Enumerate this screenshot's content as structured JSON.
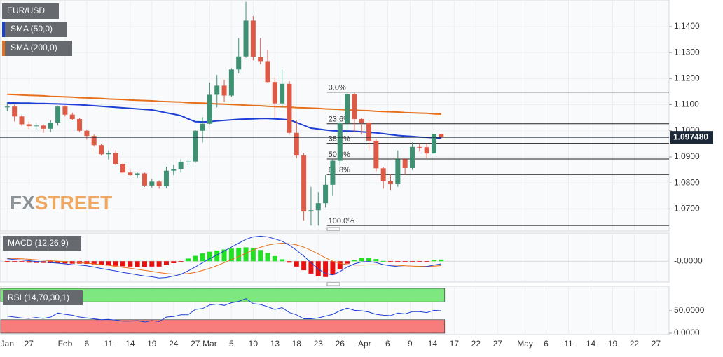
{
  "chart_data": {
    "type": "candlestick",
    "title": "EUR/USD",
    "up_color": "#3f9173",
    "down_color": "#dd5a47",
    "grid": true,
    "xlim": [
      -1,
      91.5
    ],
    "xticks": [
      {
        "value": 0,
        "label": "Jan"
      },
      {
        "value": 3,
        "label": "27"
      },
      {
        "value": 8,
        "label": "Feb"
      },
      {
        "value": 11,
        "label": "6"
      },
      {
        "value": 14,
        "label": "11"
      },
      {
        "value": 17,
        "label": "14"
      },
      {
        "value": 20,
        "label": "19"
      },
      {
        "value": 23,
        "label": "24"
      },
      {
        "value": 26,
        "label": "27"
      },
      {
        "value": 28,
        "label": "Mar"
      },
      {
        "value": 31,
        "label": "5"
      },
      {
        "value": 34,
        "label": "10"
      },
      {
        "value": 37,
        "label": "13"
      },
      {
        "value": 40,
        "label": "18"
      },
      {
        "value": 43,
        "label": "23"
      },
      {
        "value": 46,
        "label": "26"
      },
      {
        "value": 49.4,
        "label": "Apr"
      },
      {
        "value": 52.6,
        "label": "6"
      },
      {
        "value": 55.7,
        "label": "9"
      },
      {
        "value": 58.8,
        "label": "14"
      },
      {
        "value": 61.8,
        "label": "17"
      },
      {
        "value": 64.8,
        "label": "22"
      },
      {
        "value": 67.8,
        "label": "27"
      },
      {
        "value": 71.6,
        "label": "May"
      },
      {
        "value": 74.5,
        "label": "6"
      },
      {
        "value": 77.6,
        "label": "11"
      },
      {
        "value": 80.7,
        "label": "14"
      },
      {
        "value": 83.7,
        "label": "19"
      },
      {
        "value": 86.7,
        "label": "22"
      },
      {
        "value": 89.7,
        "label": "27"
      }
    ],
    "ylim": [
      1.0615,
      1.1502
    ],
    "yticks": [
      {
        "value": 1.07,
        "label": "1.0700"
      },
      {
        "value": 1.08,
        "label": "1.0800"
      },
      {
        "value": 1.09,
        "label": "1.0900"
      },
      {
        "value": 1.1,
        "label": "1.1000"
      },
      {
        "value": 1.11,
        "label": "1.1100"
      },
      {
        "value": 1.12,
        "label": "1.1200"
      },
      {
        "value": 1.13,
        "label": "1.1300"
      },
      {
        "value": 1.14,
        "label": "1.1400"
      }
    ],
    "open": [
      1.109,
      1.1093,
      1.1055,
      1.1025,
      1.1018,
      1.102,
      1.1008,
      1.1031,
      1.1093,
      1.1062,
      1.1045,
      1.1,
      1.098,
      1.0945,
      1.091,
      1.0915,
      1.0873,
      1.084,
      1.083,
      1.0837,
      1.079,
      1.0805,
      1.0788,
      1.0847,
      1.0853,
      1.088,
      1.0882,
      1.1,
      1.1027,
      1.1138,
      1.1173,
      1.1135,
      1.1235,
      1.1285,
      1.1423,
      1.1284,
      1.1267,
      1.1187,
      1.1105,
      1.118,
      1.0992,
      1.0905,
      1.069,
      1.0695,
      1.0722,
      1.0793,
      1.0885,
      1.1028,
      1.114,
      1.1045,
      1.1031,
      1.0962,
      1.0856,
      1.0807,
      1.0795,
      1.0891,
      1.0857,
      1.0938,
      1.0937,
      1.0913,
      1.0986
    ],
    "high": [
      1.111,
      1.11,
      1.106,
      1.1035,
      1.103,
      1.1025,
      1.104,
      1.1096,
      1.1097,
      1.107,
      1.105,
      1.1005,
      1.0985,
      1.095,
      1.0925,
      1.0925,
      1.088,
      1.085,
      1.084,
      1.084,
      1.0815,
      1.081,
      1.0862,
      1.087,
      1.0891,
      1.089,
      1.1003,
      1.1053,
      1.1185,
      1.1214,
      1.1195,
      1.124,
      1.1355,
      1.1495,
      1.144,
      1.1355,
      1.131,
      1.1205,
      1.1235,
      1.119,
      1.104,
      1.0915,
      1.0785,
      1.0765,
      1.083,
      1.089,
      1.1035,
      1.1148,
      1.1145,
      1.105,
      1.104,
      1.097,
      1.086,
      1.0835,
      1.0925,
      1.0895,
      1.0955,
      1.0953,
      1.095,
      1.099,
      1.099
    ],
    "low": [
      1.1075,
      1.1036,
      1.1019,
      1.1007,
      1.1005,
      1.0992,
      1.0995,
      1.102,
      1.1055,
      1.104,
      1.0995,
      1.0966,
      1.094,
      1.0905,
      1.089,
      1.0868,
      1.0835,
      1.0827,
      1.082,
      1.0785,
      1.0782,
      1.0778,
      1.078,
      1.083,
      1.084,
      1.086,
      1.0875,
      1.0955,
      1.1025,
      1.109,
      1.111,
      1.113,
      1.122,
      1.128,
      1.127,
      1.1255,
      1.1185,
      1.105,
      1.109,
      1.0985,
      1.0895,
      1.0655,
      1.0636,
      1.0636,
      1.0705,
      1.075,
      1.087,
      1.099,
      1.0995,
      1.0985,
      1.0925,
      1.0845,
      1.0778,
      1.077,
      1.0785,
      1.083,
      1.085,
      1.092,
      1.0895,
      1.0905,
      1.097
    ],
    "close": [
      1.1093,
      1.1055,
      1.1025,
      1.1018,
      1.102,
      1.1008,
      1.1031,
      1.1093,
      1.1062,
      1.1045,
      1.1,
      1.098,
      1.0945,
      1.091,
      1.0915,
      1.0873,
      1.084,
      1.083,
      1.0837,
      1.079,
      1.0805,
      1.0788,
      1.0847,
      1.0853,
      1.088,
      1.0882,
      1.1,
      1.1027,
      1.1138,
      1.1173,
      1.1135,
      1.1235,
      1.1285,
      1.1423,
      1.1284,
      1.1267,
      1.1187,
      1.1105,
      1.118,
      1.0992,
      1.0905,
      1.069,
      1.0695,
      1.0722,
      1.0793,
      1.0885,
      1.1028,
      1.114,
      1.1045,
      1.1031,
      1.0962,
      1.0856,
      1.0807,
      1.0795,
      1.0891,
      1.0857,
      1.0938,
      1.0937,
      1.0913,
      1.0986,
      1.0974
    ],
    "overlays": [
      {
        "name": "SMA (50,0)",
        "color": "#1c3fd6",
        "values": [
          1.1107,
          1.1107,
          1.1106,
          1.1106,
          1.1105,
          1.1105,
          1.1104,
          1.1103,
          1.1102,
          1.1101,
          1.11,
          1.1098,
          1.1096,
          1.1094,
          1.1092,
          1.109,
          1.1088,
          1.1086,
          1.1084,
          1.1082,
          1.108,
          1.1075,
          1.1069,
          1.1064,
          1.1058,
          1.1046,
          1.1035,
          1.1034,
          1.1035,
          1.1038,
          1.104,
          1.1042,
          1.1044,
          1.1045,
          1.1046,
          1.1047,
          1.1047,
          1.1046,
          1.1044,
          1.1042,
          1.1032,
          1.1021,
          1.101,
          1.1007,
          1.1003,
          1.1,
          1.0999,
          1.0999,
          1.0998,
          1.0996,
          1.0994,
          1.0992,
          1.0989,
          1.0985,
          1.0982,
          1.098,
          1.0978,
          1.0976,
          1.0975,
          1.0973,
          1.0972
        ]
      },
      {
        "name": "SMA (200,0)",
        "color": "#e8701a",
        "values": [
          1.114,
          1.1139,
          1.1137,
          1.1136,
          1.1135,
          1.1134,
          1.1132,
          1.1131,
          1.113,
          1.1129,
          1.1127,
          1.1126,
          1.1125,
          1.1124,
          1.1122,
          1.1121,
          1.112,
          1.1118,
          1.1117,
          1.1116,
          1.1115,
          1.1113,
          1.1112,
          1.1111,
          1.111,
          1.1108,
          1.1107,
          1.1106,
          1.1105,
          1.1103,
          1.1102,
          1.1101,
          1.11,
          1.1098,
          1.1097,
          1.1096,
          1.1094,
          1.1093,
          1.1092,
          1.1091,
          1.1089,
          1.1088,
          1.1087,
          1.1086,
          1.1084,
          1.1083,
          1.1082,
          1.108,
          1.1079,
          1.1078,
          1.1077,
          1.1075,
          1.1074,
          1.1073,
          1.1072,
          1.107,
          1.1069,
          1.1068,
          1.1067,
          1.1065,
          1.1064
        ]
      }
    ],
    "fibonacci": {
      "start": 44.2,
      "levels": [
        {
          "label": "0.0%",
          "price": 1.1148
        },
        {
          "label": "23.6%",
          "price": 1.1027
        },
        {
          "label": "38.2%",
          "price": 1.0952
        },
        {
          "label": "50.0%",
          "price": 1.0892
        },
        {
          "label": "61.8%",
          "price": 1.0832
        },
        {
          "label": "100.0%",
          "price": 1.0636
        }
      ]
    },
    "last_price": {
      "value": 1.09748,
      "label": "1.097480"
    },
    "watermark": [
      "FX",
      "STREET"
    ],
    "panels": [
      {
        "type": "macd",
        "title": "MACD (12,26,9)",
        "ylim": [
          -0.008,
          0.011
        ],
        "yticks": [
          {
            "value": 0,
            "label": "-0.0000"
          }
        ],
        "macd": {
          "color": "#1c3fd6",
          "values": [
            0.001,
            0.0007,
            0.0005,
            0.0002,
            -0.0001,
            -0.0003,
            -0.0006,
            -0.0008,
            -0.0011,
            -0.0014,
            -0.0016,
            -0.0019,
            -0.0024,
            -0.003,
            -0.0035,
            -0.004,
            -0.0046,
            -0.0051,
            -0.0056,
            -0.0061,
            -0.0064,
            -0.0069,
            -0.0067,
            -0.0061,
            -0.0054,
            -0.004,
            -0.0024,
            -0.0006,
            0.001,
            0.0026,
            0.0042,
            0.0058,
            0.0074,
            0.009,
            0.01,
            0.0103,
            0.01,
            0.0092,
            0.0082,
            0.0066,
            0.0045,
            0.0021,
            -0.0006,
            -0.0032,
            -0.0051,
            -0.0056,
            -0.0043,
            -0.0024,
            -0.0011,
            -0.0003,
            -0.0001,
            -0.0006,
            -0.0014,
            -0.0019,
            -0.0022,
            -0.0024,
            -0.0024,
            -0.0024,
            -0.0022,
            -0.0016,
            -0.0011
          ]
        },
        "signal": {
          "color": "#e8701a",
          "values": [
            0.0012,
            0.0011,
            0.001,
            0.0008,
            0.0006,
            0.0004,
            0.0002,
            0.0,
            -0.0002,
            -0.0004,
            -0.0006,
            -0.0008,
            -0.0011,
            -0.0014,
            -0.0017,
            -0.0021,
            -0.0025,
            -0.0029,
            -0.0033,
            -0.0038,
            -0.0042,
            -0.0047,
            -0.0051,
            -0.0053,
            -0.0053,
            -0.0051,
            -0.0046,
            -0.0038,
            -0.0029,
            -0.0018,
            -0.0006,
            0.0006,
            0.0019,
            0.0033,
            0.0046,
            0.0057,
            0.0066,
            0.0071,
            0.0074,
            0.0072,
            0.0067,
            0.0058,
            0.0045,
            0.003,
            0.0014,
            0.0,
            -0.0009,
            -0.0014,
            -0.0016,
            -0.0016,
            -0.0015,
            -0.0015,
            -0.0015,
            -0.0016,
            -0.0017,
            -0.0019,
            -0.002,
            -0.0021,
            -0.0021,
            -0.002,
            -0.0018
          ]
        },
        "histogram": {
          "up_color": "#22e022",
          "down_color": "#e81010",
          "values": [
            -0.0002,
            -0.0004,
            -0.0005,
            -0.0006,
            -0.0007,
            -0.0007,
            -0.0008,
            -0.0008,
            -0.0009,
            -0.001,
            -0.001,
            -0.0011,
            -0.0013,
            -0.0016,
            -0.0018,
            -0.0019,
            -0.0021,
            -0.0022,
            -0.0023,
            -0.0023,
            -0.0022,
            -0.0022,
            -0.0016,
            -0.0008,
            -0.0001,
            0.0011,
            0.0022,
            0.0032,
            0.0039,
            0.0044,
            0.0048,
            0.0052,
            0.0055,
            0.0057,
            0.0054,
            0.0046,
            0.0034,
            0.0021,
            0.0008,
            -0.0006,
            -0.0022,
            -0.0037,
            -0.0051,
            -0.0062,
            -0.0065,
            -0.0056,
            -0.0034,
            -0.001,
            0.0005,
            0.0013,
            0.0014,
            0.0009,
            0.0001,
            -0.0003,
            -0.0005,
            -0.0005,
            -0.0004,
            -0.0003,
            -0.0001,
            0.0004,
            0.0007
          ]
        }
      },
      {
        "type": "rsi",
        "title": "RSI (14,70,30,1)",
        "ylim": [
          0,
          100
        ],
        "yticks": [
          {
            "value": 50,
            "label": "50.0000"
          },
          {
            "value": 0,
            "label": "0.0000"
          }
        ],
        "overbought": 70,
        "oversold": 30,
        "overbought_color": "#7fe77f",
        "oversold_color": "#f77d7d",
        "color": "#1c3fd6",
        "values": [
          38,
          36,
          34,
          33,
          35,
          33,
          36,
          45,
          42,
          40,
          36,
          34,
          32,
          30,
          31,
          29,
          27,
          27,
          28,
          25,
          28,
          26,
          36,
          37,
          41,
          41,
          53,
          55,
          63,
          65,
          62,
          68,
          71,
          77,
          66,
          64,
          59,
          53,
          57,
          46,
          41,
          32,
          32,
          34,
          38,
          42,
          50,
          56,
          51,
          50,
          47,
          42,
          40,
          39,
          45,
          43,
          48,
          48,
          46,
          51,
          50
        ]
      }
    ]
  }
}
